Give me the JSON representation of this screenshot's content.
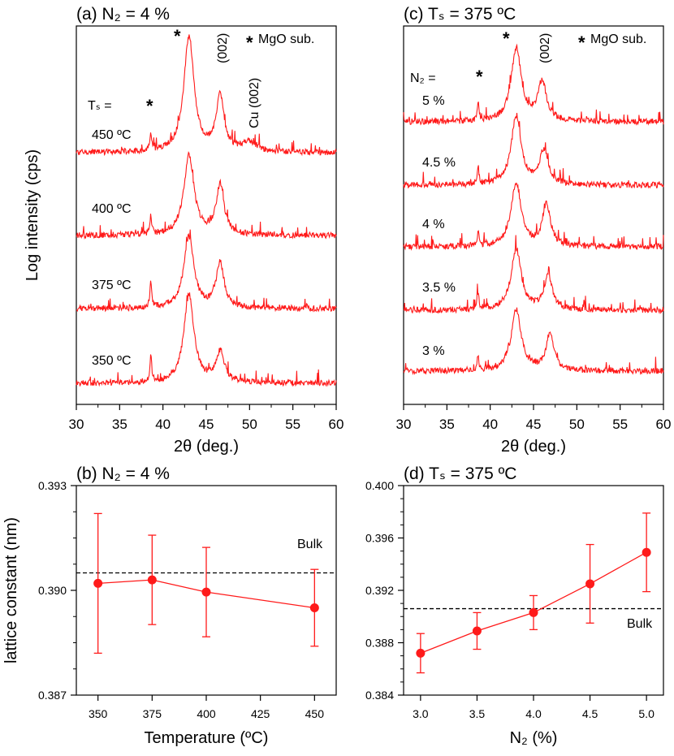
{
  "chart_data": [
    {
      "panel": "a",
      "type": "line",
      "title": "(a) N₂ = 4 %",
      "xlabel": "2θ (deg.)",
      "ylabel": "Log intensity (cps)",
      "xlim": [
        30,
        60
      ],
      "xticks": [
        "30",
        "35",
        "40",
        "45",
        "50",
        "55",
        "60"
      ],
      "legend_note": "MgO sub.",
      "star_symbol": "*",
      "peak_labels": [
        "(002)",
        "Cu (002)"
      ],
      "series_header": "Tₛ =",
      "series": [
        {
          "name": "450 ºC",
          "baseline": 1.0,
          "peaks": [
            {
              "pos": 38.6,
              "h": 0.55,
              "w": 0.12
            },
            {
              "pos": 43.0,
              "h": 4.2,
              "w": 0.7
            },
            {
              "pos": 46.6,
              "h": 2.0,
              "w": 0.55
            },
            {
              "pos": 50.0,
              "h": 0.35,
              "w": 1.0
            }
          ]
        },
        {
          "name": "400 ºC",
          "baseline": 1.0,
          "peaks": [
            {
              "pos": 38.6,
              "h": 0.7,
              "w": 0.12
            },
            {
              "pos": 43.0,
              "h": 2.9,
              "w": 0.7
            },
            {
              "pos": 46.6,
              "h": 1.8,
              "w": 0.55
            }
          ]
        },
        {
          "name": "375 ºC",
          "baseline": 1.0,
          "peaks": [
            {
              "pos": 38.6,
              "h": 0.95,
              "w": 0.12
            },
            {
              "pos": 43.0,
              "h": 2.6,
              "w": 0.7
            },
            {
              "pos": 46.6,
              "h": 1.6,
              "w": 0.55
            }
          ]
        },
        {
          "name": "350 ºC",
          "baseline": 1.0,
          "peaks": [
            {
              "pos": 38.6,
              "h": 1.0,
              "w": 0.12
            },
            {
              "pos": 43.0,
              "h": 3.2,
              "w": 0.7
            },
            {
              "pos": 46.6,
              "h": 1.1,
              "w": 0.6
            }
          ]
        }
      ]
    },
    {
      "panel": "b",
      "type": "scatter",
      "title": "(b) N₂ = 4 %",
      "xlabel": "Temperature (ºC)",
      "ylabel": "lattice constant (nm)",
      "xlim": [
        340,
        460
      ],
      "ylim": [
        0.387,
        0.393
      ],
      "xticks": [
        "350",
        "375",
        "400",
        "425",
        "450"
      ],
      "yticks": [
        "0.387",
        "0.390",
        "0.393"
      ],
      "reference_label": "Bulk",
      "reference_value": 0.3905,
      "x": [
        350,
        375,
        400,
        450
      ],
      "y": [
        0.3902,
        0.3903,
        0.38995,
        0.3895
      ],
      "yerr": [
        0.002,
        0.00128,
        0.00128,
        0.0011
      ]
    },
    {
      "panel": "c",
      "type": "line",
      "title": "(c) Tₛ = 375 ºC",
      "xlabel": "2θ (deg.)",
      "xlim": [
        30,
        60
      ],
      "xticks": [
        "30",
        "35",
        "40",
        "45",
        "50",
        "55",
        "60"
      ],
      "legend_note": "MgO sub.",
      "star_symbol": "*",
      "peak_labels": [
        "(002)"
      ],
      "series_header": "N₂ =",
      "series": [
        {
          "name": "5 %",
          "baseline": 1.0,
          "peaks": [
            {
              "pos": 38.6,
              "h": 0.8,
              "w": 0.12
            },
            {
              "pos": 43.0,
              "h": 3.0,
              "w": 0.7
            },
            {
              "pos": 46.0,
              "h": 1.6,
              "w": 0.6
            }
          ]
        },
        {
          "name": "4.5 %",
          "baseline": 1.0,
          "peaks": [
            {
              "pos": 38.6,
              "h": 0.7,
              "w": 0.12
            },
            {
              "pos": 43.0,
              "h": 2.8,
              "w": 0.7
            },
            {
              "pos": 46.2,
              "h": 1.4,
              "w": 0.6
            }
          ]
        },
        {
          "name": "4 %",
          "baseline": 1.0,
          "peaks": [
            {
              "pos": 38.6,
              "h": 0.6,
              "w": 0.12
            },
            {
              "pos": 43.0,
              "h": 2.6,
              "w": 0.7
            },
            {
              "pos": 46.5,
              "h": 1.7,
              "w": 0.55
            }
          ]
        },
        {
          "name": "3.5 %",
          "baseline": 1.0,
          "peaks": [
            {
              "pos": 38.6,
              "h": 0.7,
              "w": 0.12
            },
            {
              "pos": 43.0,
              "h": 2.5,
              "w": 0.7
            },
            {
              "pos": 46.7,
              "h": 1.4,
              "w": 0.55
            }
          ]
        },
        {
          "name": "3 %",
          "baseline": 1.0,
          "peaks": [
            {
              "pos": 38.6,
              "h": 0.6,
              "w": 0.12
            },
            {
              "pos": 43.0,
              "h": 2.5,
              "w": 0.7
            },
            {
              "pos": 46.9,
              "h": 1.5,
              "w": 0.55
            }
          ]
        }
      ]
    },
    {
      "panel": "d",
      "type": "scatter",
      "title": "(d) Tₛ = 375 ºC",
      "xlabel": "N₂ (%)",
      "xlim": [
        2.85,
        5.15
      ],
      "ylim": [
        0.384,
        0.4
      ],
      "xticks": [
        "3.0",
        "3.5",
        "4.0",
        "4.5",
        "5.0"
      ],
      "yticks": [
        "0.384",
        "0.388",
        "0.392",
        "0.396",
        "0.400"
      ],
      "reference_label": "Bulk",
      "reference_value": 0.3906,
      "x": [
        3.0,
        3.5,
        4.0,
        4.5,
        5.0
      ],
      "y": [
        0.3872,
        0.3889,
        0.3903,
        0.3925,
        0.3949
      ],
      "yerr": [
        0.0015,
        0.0014,
        0.0013,
        0.003,
        0.003
      ]
    }
  ],
  "colors": {
    "data": "#ff1a1a",
    "axis": "#000000"
  }
}
